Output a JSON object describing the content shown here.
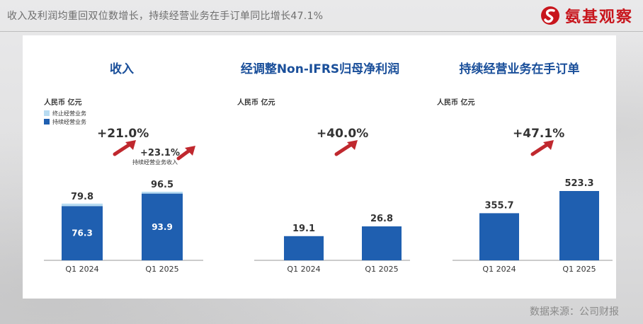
{
  "header": {
    "headline": "收入及利润均重回双位数增长，持续经营业务在手订单同比增长47.1%",
    "logo_text": "氨基观察"
  },
  "colors": {
    "bar": "#1f5fb0",
    "discontinued": "#b8dcf2",
    "growth_arrow": "#c0282e",
    "title": "#1a4f9a"
  },
  "source": "数据来源：公司财报",
  "chart_data": [
    {
      "type": "bar",
      "stacked": true,
      "title": "收入",
      "unit": "人民币 亿元",
      "categories": [
        "Q1 2024",
        "Q1 2025"
      ],
      "series": [
        {
          "name": "持续经营业务",
          "values": [
            76.3,
            93.9
          ]
        },
        {
          "name": "终止经营业务",
          "values": [
            3.5,
            2.6
          ]
        }
      ],
      "totals": [
        79.8,
        96.5
      ],
      "growth": [
        {
          "label": "+21.0%",
          "caption": ""
        },
        {
          "label": "+23.1%",
          "caption": "持续经营业务收入"
        }
      ]
    },
    {
      "type": "bar",
      "title": "经调整Non-IFRS归母净利润",
      "unit": "人民币 亿元",
      "categories": [
        "Q1 2024",
        "Q1 2025"
      ],
      "values": [
        19.1,
        26.8
      ],
      "growth": [
        {
          "label": "+40.0%",
          "caption": ""
        }
      ]
    },
    {
      "type": "bar",
      "title": "持续经营业务在手订单",
      "unit": "人民币 亿元",
      "categories": [
        "Q1 2024",
        "Q1 2025"
      ],
      "values": [
        355.7,
        523.3
      ],
      "growth": [
        {
          "label": "+47.1%",
          "caption": ""
        }
      ]
    }
  ]
}
